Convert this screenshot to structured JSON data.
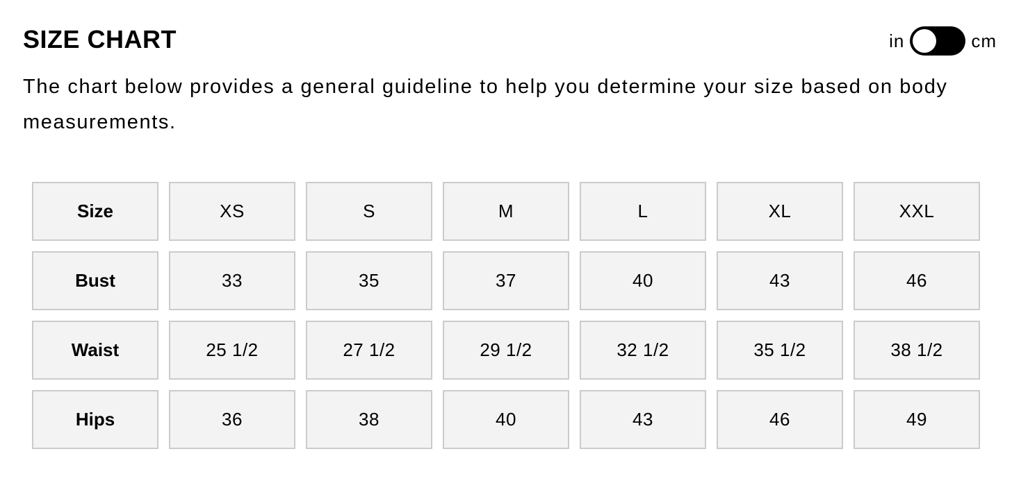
{
  "header": {
    "title": "SIZE CHART",
    "description": "The chart below provides a general guideline to help you determine your size based on body measurements."
  },
  "unit_toggle": {
    "left_label": "in",
    "right_label": "cm",
    "selected": "in"
  },
  "table": {
    "rows": [
      {
        "label": "Size",
        "values": [
          "XS",
          "S",
          "M",
          "L",
          "XL",
          "XXL"
        ]
      },
      {
        "label": "Bust",
        "values": [
          "33",
          "35",
          "37",
          "40",
          "43",
          "46"
        ]
      },
      {
        "label": "Waist",
        "values": [
          "25 1/2",
          "27 1/2",
          "29 1/2",
          "32 1/2",
          "35 1/2",
          "38 1/2"
        ]
      },
      {
        "label": "Hips",
        "values": [
          "36",
          "38",
          "40",
          "43",
          "46",
          "49"
        ]
      }
    ]
  }
}
